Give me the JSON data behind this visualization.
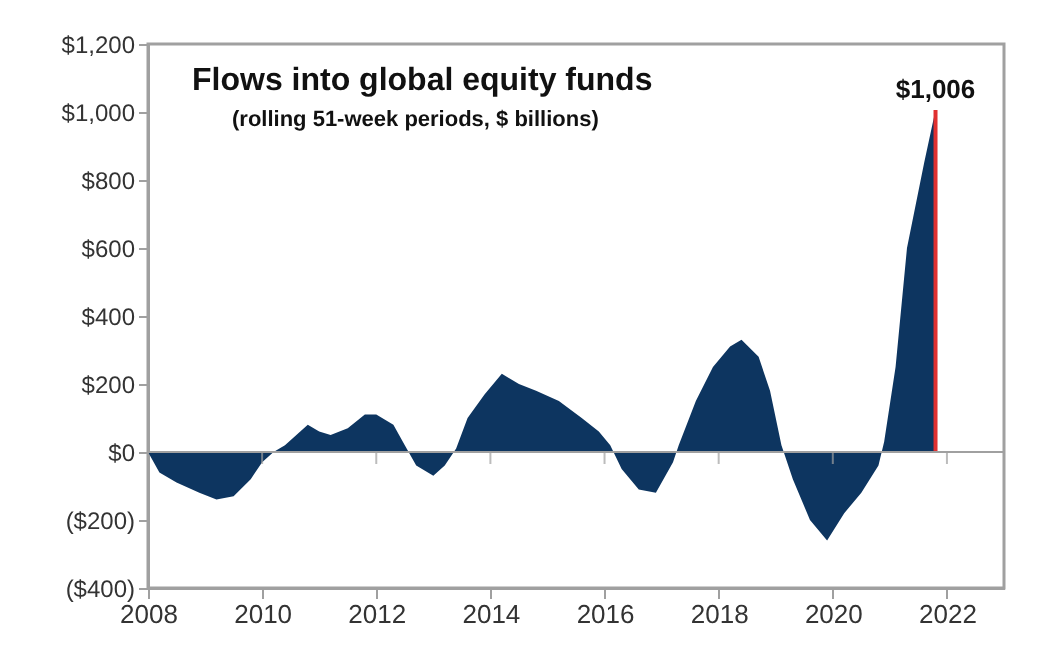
{
  "chart_data": {
    "type": "area",
    "title": "Flows into global equity funds",
    "subtitle": "(rolling 51-week periods, $ billions)",
    "series": [
      {
        "color": "#0d3560",
        "x": [
          2008.0,
          2008.2,
          2008.5,
          2008.9,
          2009.2,
          2009.5,
          2009.8,
          2010.0,
          2010.2,
          2010.4,
          2010.6,
          2010.8,
          2011.0,
          2011.2,
          2011.5,
          2011.8,
          2012.0,
          2012.3,
          2012.5,
          2012.7,
          2013.0,
          2013.2,
          2013.4,
          2013.6,
          2013.9,
          2014.2,
          2014.5,
          2014.8,
          2015.2,
          2015.6,
          2015.9,
          2016.1,
          2016.3,
          2016.6,
          2016.9,
          2017.2,
          2017.3,
          2017.6,
          2017.9,
          2018.2,
          2018.4,
          2018.7,
          2018.9,
          2019.1,
          2019.3,
          2019.6,
          2019.9,
          2020.2,
          2020.5,
          2020.8,
          2020.9,
          2021.1,
          2021.3,
          2021.6,
          2021.8
        ],
        "values": [
          0,
          -60,
          -90,
          -120,
          -140,
          -130,
          -80,
          -30,
          0,
          20,
          50,
          80,
          60,
          50,
          70,
          110,
          110,
          80,
          20,
          -40,
          -70,
          -40,
          10,
          100,
          170,
          230,
          200,
          180,
          150,
          100,
          60,
          20,
          -50,
          -110,
          -120,
          -30,
          20,
          150,
          250,
          310,
          330,
          280,
          180,
          20,
          -80,
          -200,
          -260,
          -180,
          -120,
          -40,
          30,
          250,
          600,
          850,
          1006
        ]
      },
      {
        "type": "bar",
        "color": "#e03030",
        "x": [
          2021.8
        ],
        "values": [
          1006
        ]
      }
    ],
    "annotations": [
      {
        "text": "$1,006",
        "x": 2021.8,
        "y": 1006
      }
    ],
    "ref_lines": [
      {
        "axis": "y",
        "value": 0,
        "color": "#a0a0a0"
      }
    ],
    "xlim": [
      2008,
      2023
    ],
    "xticks": [
      2008,
      2010,
      2012,
      2014,
      2016,
      2018,
      2020,
      2022
    ],
    "ylim": [
      -400,
      1200
    ],
    "yticks": [
      {
        "value": -400,
        "label": "($400)"
      },
      {
        "value": -200,
        "label": "($200)"
      },
      {
        "value": 0,
        "label": "$0"
      },
      {
        "value": 200,
        "label": "$200"
      },
      {
        "value": 400,
        "label": "$400"
      },
      {
        "value": 600,
        "label": "$600"
      },
      {
        "value": 800,
        "label": "$800"
      },
      {
        "value": 1000,
        "label": "$1,000"
      },
      {
        "value": 1200,
        "label": "$1,200"
      }
    ],
    "grid": false
  }
}
